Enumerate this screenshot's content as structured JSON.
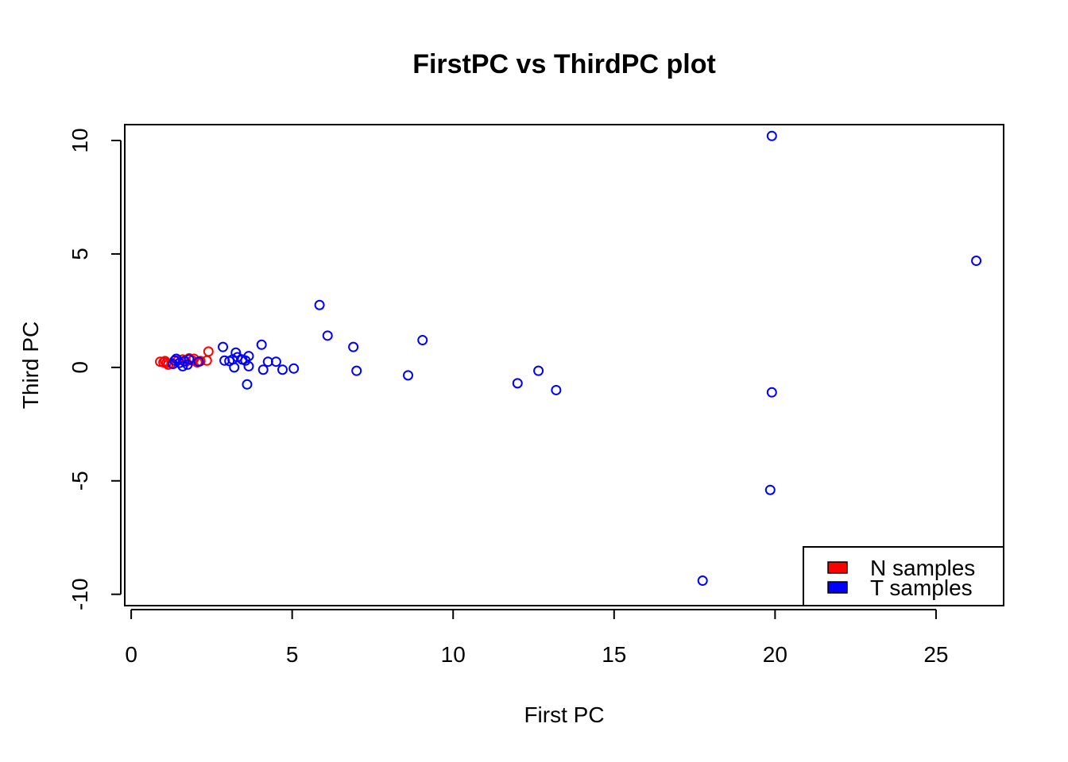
{
  "chart_data": {
    "type": "scatter",
    "title": "FirstPC vs ThirdPC plot",
    "xlabel": "First PC",
    "ylabel": "Third PC",
    "xlim": [
      -0.2,
      27.1
    ],
    "ylim": [
      -10.5,
      10.7
    ],
    "x_ticks": [
      0,
      5,
      10,
      15,
      20,
      25
    ],
    "y_ticks": [
      -10,
      -5,
      0,
      5,
      10
    ],
    "grid": false,
    "legend_position": "bottom-right",
    "series": [
      {
        "name": "N samples",
        "color": "#FF0000",
        "points": [
          [
            0.9,
            0.25
          ],
          [
            1.0,
            0.22
          ],
          [
            1.05,
            0.28
          ],
          [
            1.1,
            0.2
          ],
          [
            1.15,
            0.12
          ],
          [
            1.25,
            0.18
          ],
          [
            1.45,
            0.3
          ],
          [
            1.6,
            0.35
          ],
          [
            1.7,
            0.25
          ],
          [
            1.8,
            0.4
          ],
          [
            1.9,
            0.3
          ],
          [
            1.95,
            0.38
          ],
          [
            2.05,
            0.22
          ],
          [
            2.15,
            0.28
          ],
          [
            2.35,
            0.3
          ],
          [
            2.4,
            0.7
          ]
        ]
      },
      {
        "name": "T samples",
        "color": "#0000FF",
        "points": [
          [
            1.3,
            0.15
          ],
          [
            1.35,
            0.3
          ],
          [
            1.4,
            0.38
          ],
          [
            1.5,
            0.2
          ],
          [
            1.6,
            0.05
          ],
          [
            1.65,
            0.28
          ],
          [
            1.75,
            0.12
          ],
          [
            1.8,
            0.35
          ],
          [
            2.1,
            0.25
          ],
          [
            2.85,
            0.9
          ],
          [
            2.9,
            0.3
          ],
          [
            3.05,
            0.28
          ],
          [
            3.15,
            0.35
          ],
          [
            3.2,
            0.0
          ],
          [
            3.25,
            0.65
          ],
          [
            3.3,
            0.45
          ],
          [
            3.45,
            0.35
          ],
          [
            3.55,
            0.3
          ],
          [
            3.65,
            0.05
          ],
          [
            3.65,
            0.5
          ],
          [
            3.6,
            -0.75
          ],
          [
            4.05,
            1.0
          ],
          [
            4.1,
            -0.1
          ],
          [
            4.25,
            0.25
          ],
          [
            4.5,
            0.25
          ],
          [
            4.7,
            -0.1
          ],
          [
            5.05,
            -0.05
          ],
          [
            5.85,
            2.75
          ],
          [
            6.1,
            1.4
          ],
          [
            6.9,
            0.9
          ],
          [
            7.0,
            -0.15
          ],
          [
            8.6,
            -0.35
          ],
          [
            9.05,
            1.2
          ],
          [
            12.0,
            -0.7
          ],
          [
            12.65,
            -0.15
          ],
          [
            13.2,
            -1.0
          ],
          [
            17.75,
            -9.4
          ],
          [
            19.85,
            -5.4
          ],
          [
            19.9,
            -1.1
          ],
          [
            19.9,
            10.2
          ],
          [
            26.25,
            4.7
          ]
        ]
      }
    ]
  }
}
